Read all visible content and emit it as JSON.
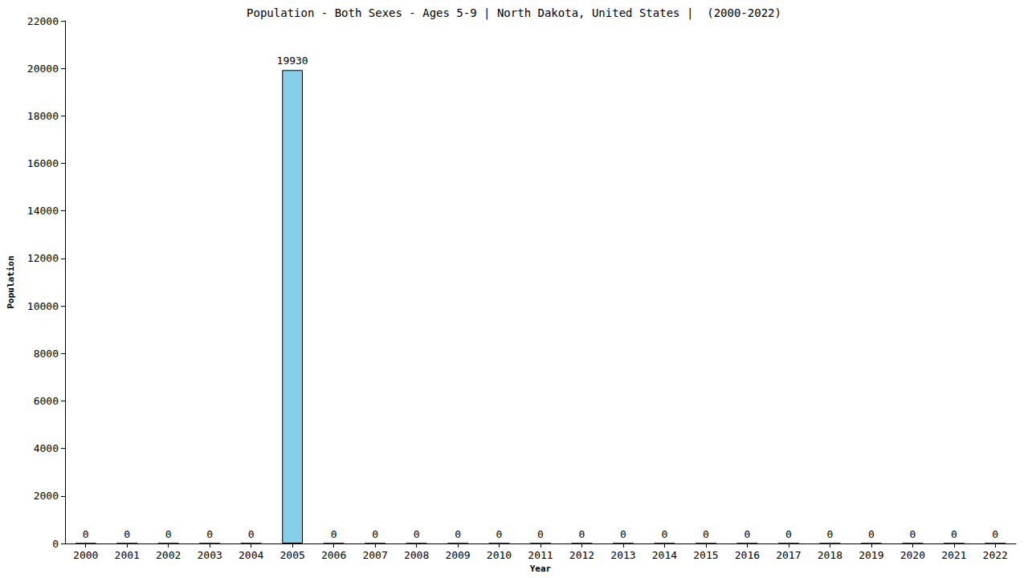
{
  "chart_data": {
    "type": "bar",
    "title": "Population - Both Sexes - Ages 5-9 | North Dakota, United States |  (2000-2022)",
    "x_label": "Year",
    "y_label": "Population",
    "categories": [
      "2000",
      "2001",
      "2002",
      "2003",
      "2004",
      "2005",
      "2006",
      "2007",
      "2008",
      "2009",
      "2010",
      "2011",
      "2012",
      "2013",
      "2014",
      "2015",
      "2016",
      "2017",
      "2018",
      "2019",
      "2020",
      "2021",
      "2022"
    ],
    "values": [
      0,
      0,
      0,
      0,
      0,
      19930,
      0,
      0,
      0,
      0,
      0,
      0,
      0,
      0,
      0,
      0,
      0,
      0,
      0,
      0,
      0,
      0,
      0
    ],
    "color": "#87ceeb",
    "ylim": [
      0,
      22000
    ],
    "yticks": [
      0,
      2000,
      4000,
      6000,
      8000,
      10000,
      12000,
      14000,
      16000,
      18000,
      20000,
      22000
    ],
    "grid": false,
    "data_labels": true
  }
}
